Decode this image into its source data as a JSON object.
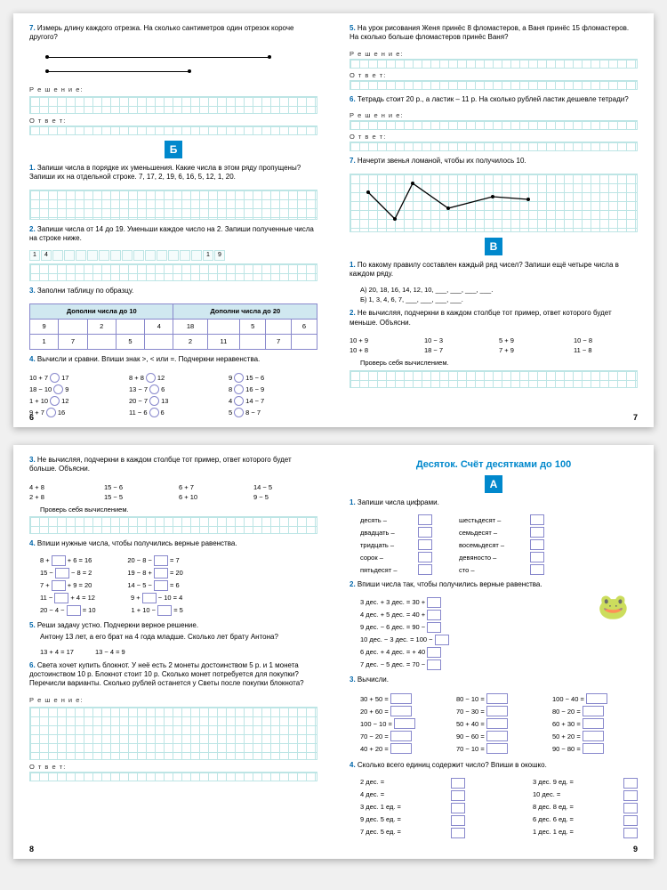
{
  "spread1": {
    "left": {
      "pagenum": "6",
      "t7": {
        "num": "7.",
        "text": "Измерь длину каждого отрезка. На сколько сантиметров один отрезок короче другого?"
      },
      "resh": "Р е ш е н и е:",
      "otv": "О т в е т:",
      "badge": "Б",
      "t1": {
        "num": "1.",
        "text": "Запиши числа в порядке их уменьшения. Какие числа в этом ряду пропущены? Запиши их на отдельной строке. 7, 17, 2, 19, 6, 16, 5, 12, 1, 20."
      },
      "t2": {
        "num": "2.",
        "text": "Запиши числа от 14 до 19. Уменьши каждое число на 2. Запиши полученные числа на строке ниже."
      },
      "t2vals": [
        "1",
        "4",
        "",
        "",
        "",
        "",
        "",
        "",
        "",
        "",
        "",
        "",
        "",
        "",
        "",
        "1",
        "9"
      ],
      "t3": {
        "num": "3.",
        "text": "Заполни таблицу по образцу."
      },
      "table": {
        "h1": "Дополни числа до 10",
        "h2": "Дополни числа до 20",
        "r1": [
          "9",
          "",
          "2",
          "",
          "4",
          "18",
          "",
          "5",
          "",
          "6"
        ],
        "r2": [
          "1",
          "7",
          "",
          "5",
          "",
          "2",
          "11",
          "",
          "7",
          ""
        ]
      },
      "t4": {
        "num": "4.",
        "text": "Вычисли и сравни. Впиши знак >, < или =. Подчеркни неравенства."
      },
      "t4rows": [
        [
          "10 + 7",
          "17",
          "8 + 8",
          "12",
          "9",
          "15 − 6"
        ],
        [
          "18 − 10",
          "9",
          "13 − 7",
          "6",
          "8",
          "16 − 9"
        ],
        [
          "1 + 10",
          "12",
          "20 − 7",
          "13",
          "4",
          "14 − 7"
        ],
        [
          "9 + 7",
          "16",
          "11 − 6",
          "6",
          "5",
          "8 − 7"
        ]
      ]
    },
    "right": {
      "pagenum": "7",
      "t5": {
        "num": "5.",
        "text": "На урок рисования Женя принёс 8 фломастеров, а Ваня принёс 15 фломастеров. На сколько больше фломастеров принёс Ваня?"
      },
      "resh": "Р е ш е н и е:",
      "otv": "О т в е т:",
      "t6": {
        "num": "6.",
        "text": "Тетрадь стоит 20 р., а ластик – 11 р. На сколько рублей ластик дешевле тетради?"
      },
      "t7": {
        "num": "7.",
        "text": "Начерти звенья ломаной, чтобы их получилось 10."
      },
      "badge": "В",
      "t1": {
        "num": "1.",
        "text": "По какому правилу составлен каждый ряд чисел? Запиши ещё четыре числа в каждом ряду."
      },
      "t1a": "А) 20, 18, 16, 14, 12, 10, ___, ___, ___, ___.",
      "t1b": "Б) 1, 3, 4, 6, 7, ___, ___, ___, ___.",
      "t2": {
        "num": "2.",
        "text": "Не вычисляя, подчеркни в каждом столбце тот пример, ответ которого будет меньше. Объясни."
      },
      "t2cols": [
        [
          "10 + 9",
          "10 + 8"
        ],
        [
          "10 − 3",
          "18 − 7"
        ],
        [
          "5 + 9",
          "7 + 9"
        ],
        [
          "10 − 8",
          "11 − 8"
        ]
      ],
      "t2check": "Проверь себя вычислением."
    }
  },
  "spread2": {
    "left": {
      "pagenum": "8",
      "t3": {
        "num": "3.",
        "text": "Не вычисляя, подчеркни в каждом столбце тот пример, ответ которого будет больше. Объясни."
      },
      "t3cols": [
        [
          "4 + 8",
          "2 + 8"
        ],
        [
          "15 − 6",
          "15 − 5"
        ],
        [
          "6 + 7",
          "6 + 10"
        ],
        [
          "14 − 5",
          "9 − 5"
        ]
      ],
      "t3check": "Проверь себя вычислением.",
      "t4": {
        "num": "4.",
        "text": "Впиши нужные числа, чтобы получились верные равенства."
      },
      "t4rows": [
        [
          "8 +",
          "+ 6 = 16",
          "20 − 8 −",
          "= 7"
        ],
        [
          "15 −",
          "− 8 = 2",
          "19 − 8 +",
          "= 20"
        ],
        [
          "7 +",
          "+ 9 = 20",
          "14 − 5 −",
          "= 6"
        ],
        [
          "11 −",
          "+ 4 = 12",
          "9 +",
          "− 10 = 4"
        ],
        [
          "20 − 4 −",
          "= 10",
          "1 + 10 −",
          "= 5"
        ]
      ],
      "t5": {
        "num": "5.",
        "text": "Реши задачу устно. Подчеркни верное решение.",
        "text2": "Антону 13 лет, а его брат на 4 года младше. Сколько лет брату Антона?"
      },
      "t5e1": "13 + 4 = 17",
      "t5e2": "13 − 4 = 9",
      "t6": {
        "num": "6.",
        "text": "Света хочет купить блокнот. У неё есть 2 монеты достоинством 5 р. и 1 монета достоинством 10 р. Блокнот стоит 10 р. Сколько монет потребуется для покупки? Перечисли варианты. Сколько рублей останется у Светы после покупки блокнота?"
      },
      "resh": "Р е ш е н и е:",
      "otv": "О т в е т:"
    },
    "right": {
      "pagenum": "9",
      "title": "Десяток. Счёт десятками до 100",
      "badge": "А",
      "t1": {
        "num": "1.",
        "text": "Запиши числа цифрами."
      },
      "words": [
        [
          "десять –",
          "шестьдесят –"
        ],
        [
          "двадцать –",
          "семьдесят –"
        ],
        [
          "тридцать –",
          "восемьдесят –"
        ],
        [
          "сорок –",
          "девяносто –"
        ],
        [
          "пятьдесят –",
          "сто –"
        ]
      ],
      "t2": {
        "num": "2.",
        "text": "Впиши числа так, чтобы получились верные равенства."
      },
      "t2rows": [
        "3 дес. + 3 дес. = 30 +",
        "4 дес. + 5 дес. = 40 +",
        "9 дес. − 6 дес. = 90 −",
        "10 дес. − 3 дес. = 100 −",
        "6 дес. + 4 дес. =       + 40",
        "7 дес. − 5 дес. = 70 −"
      ],
      "t3": {
        "num": "3.",
        "text": "Вычисли."
      },
      "t3cols": [
        [
          "30 + 50 =",
          "20 + 60 =",
          "100 − 10 =",
          "70 − 20 =",
          "40 + 20 ="
        ],
        [
          "80 − 10 =",
          "70 − 30 =",
          "50 + 40 =",
          "90 − 60 =",
          "70 − 10 ="
        ],
        [
          "100 − 40 =",
          "80 − 20 =",
          "60 + 30 =",
          "50 + 20 =",
          "90 − 80 ="
        ]
      ],
      "t4": {
        "num": "4.",
        "text": "Сколько всего единиц содержит число? Впиши в окошко."
      },
      "t4rows": [
        [
          "2 дес. =",
          "3 дес. 9 ед. ="
        ],
        [
          "4 дес. =",
          "10 дес. ="
        ],
        [
          "3 дес. 1 ед. =",
          "8 дес. 8 ед. ="
        ],
        [
          "9 дес. 5 ед. =",
          "6 дес. 6 ед. ="
        ],
        [
          "7 дес. 5 ед. =",
          "1 дес. 1 ед. ="
        ]
      ]
    }
  }
}
